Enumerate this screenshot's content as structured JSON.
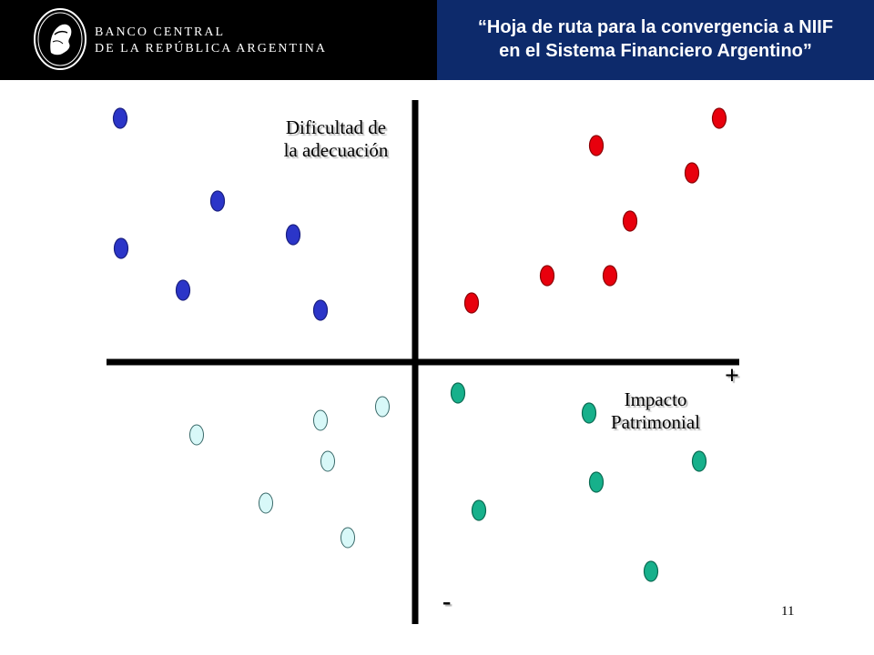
{
  "header": {
    "brand_line1": "BANCO CENTRAL",
    "brand_line2": "DE LA REPÚBLICA ARGENTINA",
    "title_line1": "“Hoja de ruta para la convergencia a NIIF",
    "title_line2": "en el Sistema Financiero Argentino”"
  },
  "diagram": {
    "vertical_axis_label_line1": "Dificultad de",
    "vertical_axis_label_line2": "la adecuación",
    "horizontal_axis_label_line1": "Impacto",
    "horizontal_axis_label_line2": "Patrimonial",
    "plus_sign": "+",
    "minus_sign": "-"
  },
  "colors": {
    "header_bg": "#000000",
    "title_bg": "#0d2a6b",
    "blue": "#2b35c8",
    "red": "#e8000d",
    "teal": "#17b08b",
    "light_cyan": "#d8f8f8"
  },
  "page_number": "11"
}
